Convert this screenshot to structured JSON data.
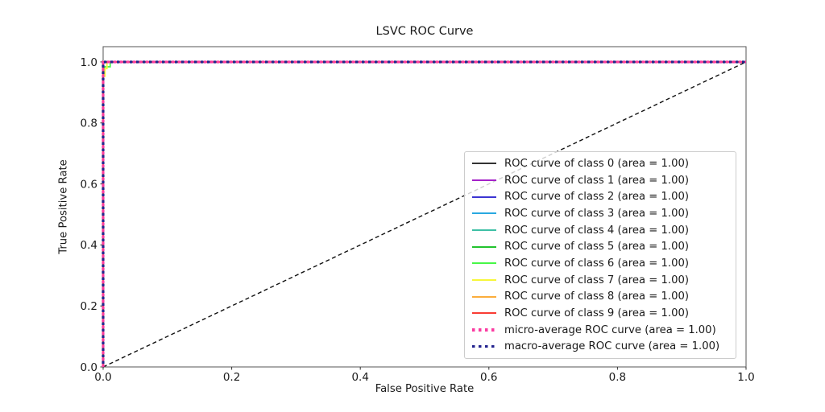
{
  "chart_data": {
    "type": "line",
    "title": "LSVC ROC Curve",
    "xlabel": "False Positive Rate",
    "ylabel": "True Positive Rate",
    "xlim": [
      0.0,
      1.0
    ],
    "ylim": [
      0.0,
      1.05
    ],
    "grid": false,
    "legend_position": "inside center-right",
    "xticks": {
      "values": [
        0.0,
        0.2,
        0.4,
        0.6,
        0.8,
        1.0
      ],
      "labels": [
        "0.0",
        "0.2",
        "0.4",
        "0.6",
        "0.8",
        "1.0"
      ]
    },
    "yticks": {
      "values": [
        0.0,
        0.2,
        0.4,
        0.6,
        0.8,
        1.0
      ],
      "labels": [
        "0.0",
        "0.2",
        "0.4",
        "0.6",
        "0.8",
        "1.0"
      ]
    },
    "reference_line": {
      "name": "chance-diagonal",
      "style": "dashed",
      "color": "#111111",
      "points": [
        [
          0,
          0
        ],
        [
          1,
          1
        ]
      ]
    },
    "series": [
      {
        "name": "class-0",
        "label": "ROC curve of class 0 (area = 1.00)",
        "area": 1.0,
        "color": "#333333",
        "style": "solid",
        "points": [
          [
            0,
            0
          ],
          [
            0,
            1
          ],
          [
            1,
            1
          ]
        ]
      },
      {
        "name": "class-1",
        "label": "ROC curve of class 1 (area = 1.00)",
        "area": 1.0,
        "color": "#a522c9",
        "style": "solid",
        "points": [
          [
            0,
            0
          ],
          [
            0,
            1
          ],
          [
            1,
            1
          ]
        ]
      },
      {
        "name": "class-2",
        "label": "ROC curve of class 2 (area = 1.00)",
        "area": 1.0,
        "color": "#3c35d2",
        "style": "solid",
        "points": [
          [
            0,
            0
          ],
          [
            0,
            1
          ],
          [
            1,
            1
          ]
        ]
      },
      {
        "name": "class-3",
        "label": "ROC curve of class 3 (area = 1.00)",
        "area": 1.0,
        "color": "#29a8e0",
        "style": "solid",
        "points": [
          [
            0,
            0
          ],
          [
            0,
            1
          ],
          [
            1,
            1
          ]
        ]
      },
      {
        "name": "class-4",
        "label": "ROC curve of class 4 (area = 1.00)",
        "area": 1.0,
        "color": "#3ec0a5",
        "style": "solid",
        "points": [
          [
            0,
            0
          ],
          [
            0,
            1
          ],
          [
            1,
            1
          ]
        ]
      },
      {
        "name": "class-5",
        "label": "ROC curve of class 5 (area = 1.00)",
        "area": 1.0,
        "color": "#22c32e",
        "style": "solid",
        "points": [
          [
            0,
            0
          ],
          [
            0,
            1
          ],
          [
            1,
            1
          ]
        ]
      },
      {
        "name": "class-6",
        "label": "ROC curve of class 6 (area = 1.00)",
        "area": 1.0,
        "color": "#47f747",
        "style": "solid",
        "points": [
          [
            0,
            0
          ],
          [
            0,
            0.958
          ],
          [
            0.002,
            0.958
          ],
          [
            0.002,
            0.984
          ],
          [
            0.011,
            0.984
          ],
          [
            0.011,
            1
          ],
          [
            1,
            1
          ]
        ]
      },
      {
        "name": "class-7",
        "label": "ROC curve of class 7 (area = 1.00)",
        "area": 1.0,
        "color": "#f7f73a",
        "style": "solid",
        "points": [
          [
            0,
            0
          ],
          [
            0,
            0.953
          ],
          [
            0.003,
            0.953
          ],
          [
            0.003,
            0.978
          ],
          [
            0.006,
            0.978
          ],
          [
            0.006,
            1
          ],
          [
            1,
            1
          ]
        ]
      },
      {
        "name": "class-8",
        "label": "ROC curve of class 8 (area = 1.00)",
        "area": 1.0,
        "color": "#fbad3c",
        "style": "solid",
        "points": [
          [
            0,
            0
          ],
          [
            0,
            1
          ],
          [
            1,
            1
          ]
        ]
      },
      {
        "name": "class-9",
        "label": "ROC curve of class 9 (area = 1.00)",
        "area": 1.0,
        "color": "#f93c34",
        "style": "solid",
        "points": [
          [
            0,
            0
          ],
          [
            0,
            1
          ],
          [
            1,
            1
          ]
        ]
      },
      {
        "name": "micro-average",
        "label": "micro-average ROC curve (area = 1.00)",
        "area": 1.0,
        "color": "#fb3ba2",
        "style": "dotted",
        "points": [
          [
            0,
            0
          ],
          [
            0,
            1
          ],
          [
            1,
            1
          ]
        ]
      },
      {
        "name": "macro-average",
        "label": "macro-average ROC curve (area = 1.00)",
        "area": 1.0,
        "color": "#23238f",
        "style": "dotted",
        "points": [
          [
            0,
            0
          ],
          [
            0,
            1
          ],
          [
            1,
            1
          ]
        ]
      }
    ]
  }
}
